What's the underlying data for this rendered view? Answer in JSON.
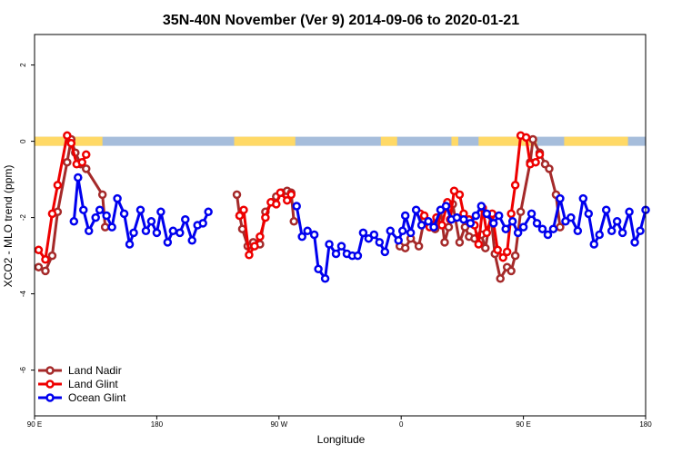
{
  "chart_data": {
    "type": "line",
    "title": "35N-40N November (Ver 9)   2014-09-06 to 2020-01-21",
    "xlabel": "Longitude",
    "ylabel": "XCO2 - MLO trend (ppm)",
    "x_ticks": [
      {
        "value": 90,
        "label": "90 E"
      },
      {
        "value": 180,
        "label": "180"
      },
      {
        "value": 270,
        "label": "90 W"
      },
      {
        "value": 360,
        "label": "0"
      },
      {
        "value": 450,
        "label": "90 E"
      },
      {
        "value": 540,
        "label": "180"
      }
    ],
    "y_ticks": [
      -6,
      -4,
      -2,
      0,
      2
    ],
    "xlim": [
      90,
      540
    ],
    "ylim": [
      -7.2,
      2.8
    ],
    "grid": false,
    "legend_position": "bottom-left",
    "land_ocean_strip": {
      "y": 0,
      "land_color": "#FFD966",
      "ocean_color": "#A6BDDB",
      "land_segments": [
        [
          90,
          112
        ],
        [
          117,
          140
        ],
        [
          237,
          282
        ],
        [
          345,
          357
        ],
        [
          397,
          402
        ],
        [
          417,
          460
        ],
        [
          480,
          527
        ]
      ]
    },
    "series": [
      {
        "name": "Land Nadir",
        "color": "#A52A2A",
        "points": [
          [
            93,
            -3.3
          ],
          [
            98,
            -3.4
          ],
          [
            103,
            -3.0
          ],
          [
            107,
            -1.85
          ],
          [
            114,
            -0.55
          ],
          [
            117,
            0.05
          ],
          [
            120,
            -0.3
          ],
          [
            124,
            -0.6
          ],
          [
            128,
            -0.72
          ],
          [
            140,
            -1.4
          ],
          [
            142,
            -2.25
          ],
          [
            239,
            -1.4
          ],
          [
            241,
            -1.95
          ],
          [
            243,
            -2.3
          ],
          [
            247,
            -2.75
          ],
          [
            251,
            -2.65
          ],
          [
            256,
            -2.7
          ],
          [
            260,
            -1.85
          ],
          [
            265,
            -1.6
          ],
          [
            268,
            -1.45
          ],
          [
            272,
            -1.35
          ],
          [
            276,
            -1.3
          ],
          [
            279,
            -1.35
          ],
          [
            281,
            -2.1
          ],
          [
            359,
            -2.75
          ],
          [
            363,
            -2.8
          ],
          [
            367,
            -2.55
          ],
          [
            373,
            -2.75
          ],
          [
            377,
            -2.05
          ],
          [
            380,
            -2.15
          ],
          [
            385,
            -2.3
          ],
          [
            389,
            -1.8
          ],
          [
            392,
            -2.65
          ],
          [
            395,
            -2.25
          ],
          [
            398,
            -1.65
          ],
          [
            403,
            -2.65
          ],
          [
            407,
            -2.25
          ],
          [
            410,
            -2.5
          ],
          [
            414,
            -2.55
          ],
          [
            419,
            -2.45
          ],
          [
            422,
            -2.8
          ],
          [
            426,
            -1.95
          ],
          [
            429,
            -2.95
          ],
          [
            433,
            -3.6
          ],
          [
            438,
            -3.3
          ],
          [
            441,
            -3.4
          ],
          [
            444,
            -3.0
          ],
          [
            448,
            -1.85
          ],
          [
            455,
            -0.55
          ],
          [
            457,
            0.05
          ],
          [
            462,
            -0.3
          ],
          [
            466,
            -0.6
          ],
          [
            469,
            -0.72
          ],
          [
            474,
            -1.4
          ],
          [
            477,
            -2.25
          ]
        ]
      },
      {
        "name": "Land Glint",
        "color": "#EE0000",
        "points": [
          [
            93,
            -2.85
          ],
          [
            98,
            -3.1
          ],
          [
            103,
            -1.9
          ],
          [
            107,
            -1.15
          ],
          [
            114,
            0.15
          ],
          [
            117,
            -0.05
          ],
          [
            121,
            -0.6
          ],
          [
            125,
            -0.55
          ],
          [
            128,
            -0.35
          ],
          [
            241,
            -1.95
          ],
          [
            244,
            -1.8
          ],
          [
            248,
            -2.98
          ],
          [
            252,
            -2.75
          ],
          [
            256,
            -2.5
          ],
          [
            260,
            -2.0
          ],
          [
            264,
            -1.6
          ],
          [
            268,
            -1.65
          ],
          [
            271,
            -1.35
          ],
          [
            276,
            -1.55
          ],
          [
            279,
            -1.4
          ],
          [
            374,
            -1.9
          ],
          [
            377,
            -1.95
          ],
          [
            381,
            -2.25
          ],
          [
            386,
            -2.0
          ],
          [
            390,
            -2.2
          ],
          [
            394,
            -1.6
          ],
          [
            396,
            -2.05
          ],
          [
            399,
            -1.3
          ],
          [
            403,
            -1.4
          ],
          [
            406,
            -1.9
          ],
          [
            410,
            -2.05
          ],
          [
            414,
            -2.2
          ],
          [
            417,
            -2.7
          ],
          [
            420,
            -1.75
          ],
          [
            423,
            -2.4
          ],
          [
            427,
            -1.9
          ],
          [
            431,
            -2.85
          ],
          [
            435,
            -3.05
          ],
          [
            438,
            -2.9
          ],
          [
            441,
            -1.9
          ],
          [
            444,
            -1.15
          ],
          [
            448,
            0.15
          ],
          [
            452,
            0.1
          ],
          [
            455,
            -0.6
          ],
          [
            459,
            -0.55
          ],
          [
            462,
            -0.35
          ]
        ]
      },
      {
        "name": "Ocean Glint",
        "color": "#0000EE",
        "points": [
          [
            119,
            -2.1
          ],
          [
            122,
            -0.95
          ],
          [
            126,
            -1.8
          ],
          [
            130,
            -2.35
          ],
          [
            135,
            -2.0
          ],
          [
            138,
            -1.8
          ],
          [
            143,
            -1.95
          ],
          [
            147,
            -2.25
          ],
          [
            151,
            -1.5
          ],
          [
            156,
            -1.9
          ],
          [
            160,
            -2.7
          ],
          [
            163,
            -2.4
          ],
          [
            168,
            -1.8
          ],
          [
            172,
            -2.35
          ],
          [
            176,
            -2.1
          ],
          [
            180,
            -2.4
          ],
          [
            183,
            -1.85
          ],
          [
            188,
            -2.65
          ],
          [
            192,
            -2.35
          ],
          [
            197,
            -2.4
          ],
          [
            201,
            -2.05
          ],
          [
            206,
            -2.6
          ],
          [
            210,
            -2.2
          ],
          [
            214,
            -2.15
          ],
          [
            218,
            -1.85
          ],
          [
            283,
            -1.7
          ],
          [
            287,
            -2.5
          ],
          [
            291,
            -2.35
          ],
          [
            296,
            -2.45
          ],
          [
            299,
            -3.35
          ],
          [
            304,
            -3.6
          ],
          [
            307,
            -2.7
          ],
          [
            312,
            -2.95
          ],
          [
            316,
            -2.75
          ],
          [
            320,
            -2.95
          ],
          [
            324,
            -3.0
          ],
          [
            328,
            -3.0
          ],
          [
            332,
            -2.4
          ],
          [
            336,
            -2.55
          ],
          [
            340,
            -2.45
          ],
          [
            344,
            -2.65
          ],
          [
            348,
            -2.9
          ],
          [
            352,
            -2.35
          ],
          [
            358,
            -2.6
          ],
          [
            361,
            -2.35
          ],
          [
            363,
            -1.95
          ],
          [
            367,
            -2.4
          ],
          [
            371,
            -1.8
          ],
          [
            375,
            -2.2
          ],
          [
            380,
            -2.1
          ],
          [
            384,
            -2.25
          ],
          [
            389,
            -1.8
          ],
          [
            393,
            -1.7
          ],
          [
            397,
            -2.05
          ],
          [
            401,
            -2.0
          ],
          [
            406,
            -2.05
          ],
          [
            411,
            -2.15
          ],
          [
            415,
            -1.95
          ],
          [
            419,
            -1.7
          ],
          [
            423,
            -1.9
          ],
          [
            428,
            -2.15
          ],
          [
            432,
            -1.95
          ],
          [
            437,
            -2.3
          ],
          [
            442,
            -2.1
          ],
          [
            446,
            -2.4
          ],
          [
            450,
            -2.25
          ],
          [
            456,
            -1.9
          ],
          [
            460,
            -2.15
          ],
          [
            464,
            -2.3
          ],
          [
            468,
            -2.45
          ],
          [
            472,
            -2.3
          ],
          [
            477,
            -1.5
          ],
          [
            481,
            -2.1
          ],
          [
            485,
            -2.0
          ],
          [
            490,
            -2.35
          ],
          [
            494,
            -1.5
          ],
          [
            498,
            -1.9
          ],
          [
            502,
            -2.7
          ],
          [
            506,
            -2.45
          ],
          [
            511,
            -1.8
          ],
          [
            515,
            -2.35
          ],
          [
            519,
            -2.1
          ],
          [
            523,
            -2.4
          ],
          [
            528,
            -1.85
          ],
          [
            532,
            -2.65
          ],
          [
            536,
            -2.35
          ],
          [
            540,
            -1.8
          ]
        ]
      }
    ]
  }
}
